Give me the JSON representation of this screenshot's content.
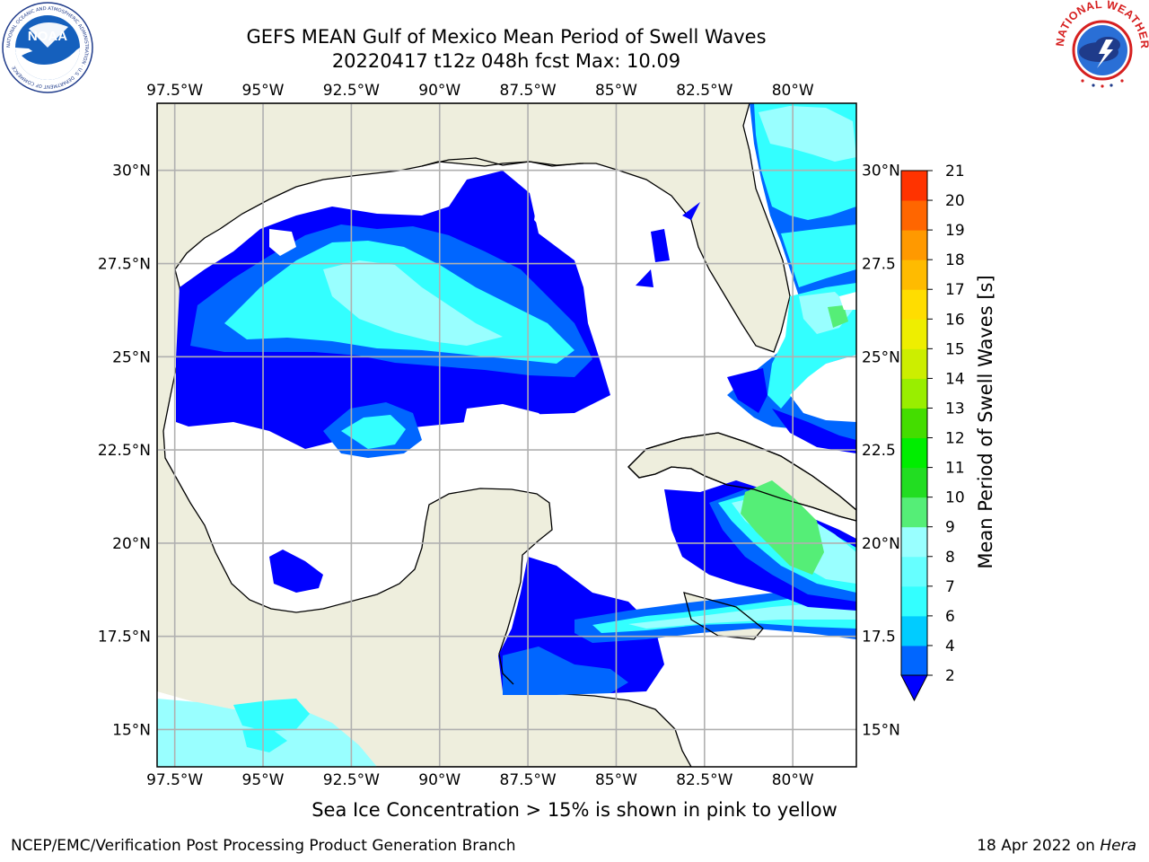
{
  "header": {
    "title_line1": "GEFS MEAN Gulf of Mexico Mean Period of Swell Waves",
    "title_line2": "20220417 t12z 048h fcst   Max: 10.09"
  },
  "logos": {
    "noaa": {
      "name": "noaa-logo",
      "text": "NOAA",
      "ring_text": "NATIONAL OCEANIC AND ATMOSPHERIC ADMINISTRATION · U.S. DEPARTMENT OF COMMERCE"
    },
    "nws": {
      "name": "nws-logo",
      "ring_text": "NATIONAL WEATHER SERVICE"
    }
  },
  "map": {
    "lon_ticks": [
      "97.5°W",
      "95°W",
      "92.5°W",
      "90°W",
      "87.5°W",
      "85°W",
      "82.5°W",
      "80°W"
    ],
    "lat_ticks_left": [
      "30°N",
      "27.5°N",
      "25°N",
      "22.5°N",
      "20°N",
      "17.5°N",
      "15°N"
    ],
    "lat_ticks_right": [
      "30°N",
      "27.5",
      "25°N",
      "22.5",
      "20°N",
      "17.5",
      "15°N"
    ],
    "extent": {
      "lon_min": -98,
      "lon_max": -78.2,
      "lat_min": 14.0,
      "lat_max": 31.8
    },
    "colors": {
      "land": "#eeeedd",
      "ocean_no_data": "#ffffff",
      "grid": "#b0b0b0",
      "coast": "#000000"
    }
  },
  "colorbar": {
    "label": "Mean Period of Swell Waves [s]",
    "ticks": [
      "2",
      "4",
      "6",
      "7",
      "8",
      "9",
      "10",
      "11",
      "12",
      "13",
      "14",
      "15",
      "16",
      "17",
      "18",
      "19",
      "20",
      "21"
    ],
    "levels": [
      2,
      4,
      6,
      7,
      8,
      9,
      10,
      11,
      12,
      13,
      14,
      15,
      16,
      17,
      18,
      19,
      20,
      21
    ],
    "colors": [
      "#0066ff",
      "#00ccff",
      "#33ffff",
      "#66ffff",
      "#99ffff",
      "#55ee77",
      "#22dd22",
      "#00ee00",
      "#44dd00",
      "#99ee00",
      "#ccee00",
      "#eeee00",
      "#ffdd00",
      "#ffbb00",
      "#ff9900",
      "#ff6600",
      "#ff3300",
      "#ff0000"
    ],
    "extend_color": "#0000ff"
  },
  "note": "Sea Ice Concentration > 15% is shown in pink to yellow",
  "footer": {
    "left": "NCEP/EMC/Verification Post Processing Product Generation Branch",
    "right_prefix": "18 Apr 2022 on ",
    "right_host": "Hera"
  }
}
